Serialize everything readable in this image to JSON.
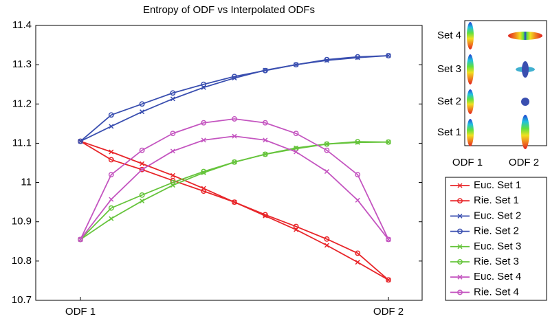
{
  "chart_data": {
    "type": "line",
    "title": "Entropy of ODF vs Interpolated ODFs",
    "categories": [
      "ODF 1",
      null,
      null,
      null,
      null,
      null,
      null,
      null,
      null,
      null,
      "ODF 2"
    ],
    "ylim": [
      10.7,
      11.4
    ],
    "yticks": [
      10.7,
      10.8,
      10.9,
      11,
      11.1,
      11.2,
      11.3,
      11.4
    ],
    "legend": "lower right",
    "series": [
      {
        "name": "Euc. Set 1",
        "color": "#e8262a",
        "marker": "x",
        "values": [
          11.105,
          11.078,
          11.048,
          11.018,
          10.985,
          10.95,
          10.915,
          10.88,
          10.84,
          10.797,
          10.752
        ]
      },
      {
        "name": "Rie. Set 1",
        "color": "#e8262a",
        "marker": "o",
        "values": [
          11.105,
          11.058,
          11.033,
          11.005,
          10.978,
          10.95,
          10.918,
          10.888,
          10.856,
          10.82,
          10.752
        ]
      },
      {
        "name": "Euc. Set 2",
        "color": "#3a4fb0",
        "marker": "x",
        "values": [
          11.105,
          11.143,
          11.18,
          11.213,
          11.242,
          11.266,
          11.286,
          11.3,
          11.311,
          11.318,
          11.323
        ]
      },
      {
        "name": "Rie. Set 2",
        "color": "#3a4fb0",
        "marker": "o",
        "values": [
          11.105,
          11.172,
          11.2,
          11.228,
          11.25,
          11.27,
          11.285,
          11.3,
          11.313,
          11.32,
          11.323
        ]
      },
      {
        "name": "Euc. Set 3",
        "color": "#66c43c",
        "marker": "x",
        "values": [
          10.855,
          10.908,
          10.953,
          10.993,
          11.025,
          11.052,
          11.072,
          11.088,
          11.098,
          11.102,
          11.103
        ]
      },
      {
        "name": "Rie. Set 3",
        "color": "#66c43c",
        "marker": "o",
        "values": [
          10.855,
          10.935,
          10.968,
          11.0,
          11.028,
          11.052,
          11.072,
          11.086,
          11.098,
          11.104,
          11.103
        ]
      },
      {
        "name": "Euc. Set 4",
        "color": "#c455c0",
        "marker": "x",
        "values": [
          10.855,
          10.957,
          11.033,
          11.08,
          11.108,
          11.118,
          11.108,
          11.078,
          11.028,
          10.955,
          10.855
        ]
      },
      {
        "name": "Rie. Set 4",
        "color": "#c455c0",
        "marker": "o",
        "values": [
          10.855,
          11.02,
          11.082,
          11.125,
          11.152,
          11.162,
          11.152,
          11.125,
          11.082,
          11.02,
          10.855
        ]
      }
    ]
  },
  "inset": {
    "row_labels": [
      "Set 4",
      "Set 3",
      "Set 2",
      "Set 1"
    ],
    "column_labels": [
      "ODF 1",
      "ODF 2"
    ]
  }
}
